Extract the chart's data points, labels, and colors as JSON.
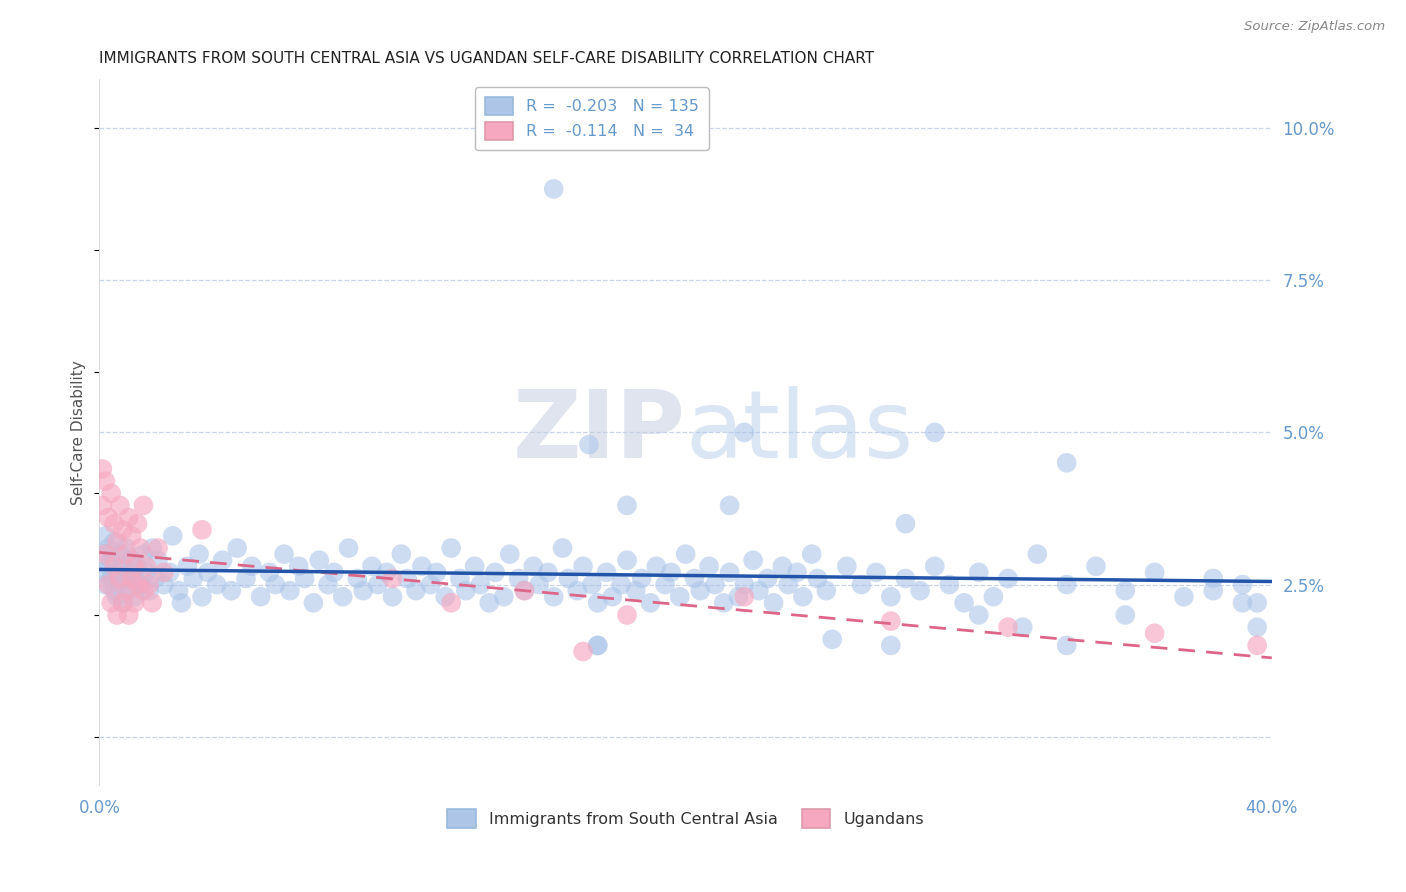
{
  "title": "IMMIGRANTS FROM SOUTH CENTRAL ASIA VS UGANDAN SELF-CARE DISABILITY CORRELATION CHART",
  "source": "Source: ZipAtlas.com",
  "ylabel": "Self-Care Disability",
  "legend_blue_label": "Immigrants from South Central Asia",
  "legend_pink_label": "Ugandans",
  "R_blue": -0.203,
  "N_blue": 135,
  "R_pink": -0.114,
  "N_pink": 34,
  "blue_color": "#adc6e8",
  "pink_color": "#f5a8c0",
  "blue_line_color": "#2255aa",
  "pink_line_color": "#dd6688",
  "watermark_zip": "ZIP",
  "watermark_atlas": "atlas",
  "background_color": "#ffffff",
  "grid_color": "#c8d4e8",
  "title_color": "#222222",
  "axis_label_color": "#6699cc",
  "xlim": [
    0.0,
    0.4
  ],
  "ylim": [
    -0.008,
    0.108
  ],
  "ytick_vals": [
    0.0,
    0.025,
    0.05,
    0.075,
    0.1
  ],
  "blue_scatter": [
    [
      0.001,
      0.03
    ],
    [
      0.001,
      0.027
    ],
    [
      0.002,
      0.033
    ],
    [
      0.002,
      0.025
    ],
    [
      0.003,
      0.028
    ],
    [
      0.003,
      0.031
    ],
    [
      0.004,
      0.026
    ],
    [
      0.004,
      0.029
    ],
    [
      0.005,
      0.032
    ],
    [
      0.005,
      0.024
    ],
    [
      0.006,
      0.027
    ],
    [
      0.006,
      0.023
    ],
    [
      0.007,
      0.03
    ],
    [
      0.007,
      0.025
    ],
    [
      0.008,
      0.028
    ],
    [
      0.008,
      0.022
    ],
    [
      0.009,
      0.026
    ],
    [
      0.009,
      0.031
    ],
    [
      0.01,
      0.024
    ],
    [
      0.01,
      0.027
    ],
    [
      0.011,
      0.029
    ],
    [
      0.012,
      0.023
    ],
    [
      0.012,
      0.026
    ],
    [
      0.013,
      0.028
    ],
    [
      0.014,
      0.025
    ],
    [
      0.015,
      0.03
    ],
    [
      0.016,
      0.027
    ],
    [
      0.017,
      0.024
    ],
    [
      0.018,
      0.031
    ],
    [
      0.019,
      0.026
    ],
    [
      0.02,
      0.029
    ],
    [
      0.022,
      0.025
    ],
    [
      0.024,
      0.027
    ],
    [
      0.025,
      0.033
    ],
    [
      0.027,
      0.024
    ],
    [
      0.028,
      0.022
    ],
    [
      0.03,
      0.028
    ],
    [
      0.032,
      0.026
    ],
    [
      0.034,
      0.03
    ],
    [
      0.035,
      0.023
    ],
    [
      0.037,
      0.027
    ],
    [
      0.04,
      0.025
    ],
    [
      0.042,
      0.029
    ],
    [
      0.045,
      0.024
    ],
    [
      0.047,
      0.031
    ],
    [
      0.05,
      0.026
    ],
    [
      0.052,
      0.028
    ],
    [
      0.055,
      0.023
    ],
    [
      0.058,
      0.027
    ],
    [
      0.06,
      0.025
    ],
    [
      0.063,
      0.03
    ],
    [
      0.065,
      0.024
    ],
    [
      0.068,
      0.028
    ],
    [
      0.07,
      0.026
    ],
    [
      0.073,
      0.022
    ],
    [
      0.075,
      0.029
    ],
    [
      0.078,
      0.025
    ],
    [
      0.08,
      0.027
    ],
    [
      0.083,
      0.023
    ],
    [
      0.085,
      0.031
    ],
    [
      0.088,
      0.026
    ],
    [
      0.09,
      0.024
    ],
    [
      0.093,
      0.028
    ],
    [
      0.095,
      0.025
    ],
    [
      0.098,
      0.027
    ],
    [
      0.1,
      0.023
    ],
    [
      0.103,
      0.03
    ],
    [
      0.105,
      0.026
    ],
    [
      0.108,
      0.024
    ],
    [
      0.11,
      0.028
    ],
    [
      0.113,
      0.025
    ],
    [
      0.115,
      0.027
    ],
    [
      0.118,
      0.023
    ],
    [
      0.12,
      0.031
    ],
    [
      0.123,
      0.026
    ],
    [
      0.125,
      0.024
    ],
    [
      0.128,
      0.028
    ],
    [
      0.13,
      0.025
    ],
    [
      0.133,
      0.022
    ],
    [
      0.135,
      0.027
    ],
    [
      0.138,
      0.023
    ],
    [
      0.14,
      0.03
    ],
    [
      0.143,
      0.026
    ],
    [
      0.145,
      0.024
    ],
    [
      0.148,
      0.028
    ],
    [
      0.15,
      0.025
    ],
    [
      0.153,
      0.027
    ],
    [
      0.155,
      0.023
    ],
    [
      0.158,
      0.031
    ],
    [
      0.16,
      0.026
    ],
    [
      0.163,
      0.024
    ],
    [
      0.165,
      0.028
    ],
    [
      0.168,
      0.025
    ],
    [
      0.17,
      0.022
    ],
    [
      0.173,
      0.027
    ],
    [
      0.175,
      0.023
    ],
    [
      0.178,
      0.025
    ],
    [
      0.18,
      0.029
    ],
    [
      0.183,
      0.024
    ],
    [
      0.185,
      0.026
    ],
    [
      0.188,
      0.022
    ],
    [
      0.19,
      0.028
    ],
    [
      0.193,
      0.025
    ],
    [
      0.195,
      0.027
    ],
    [
      0.198,
      0.023
    ],
    [
      0.2,
      0.03
    ],
    [
      0.203,
      0.026
    ],
    [
      0.205,
      0.024
    ],
    [
      0.208,
      0.028
    ],
    [
      0.21,
      0.025
    ],
    [
      0.213,
      0.022
    ],
    [
      0.215,
      0.027
    ],
    [
      0.218,
      0.023
    ],
    [
      0.22,
      0.025
    ],
    [
      0.223,
      0.029
    ],
    [
      0.225,
      0.024
    ],
    [
      0.228,
      0.026
    ],
    [
      0.23,
      0.022
    ],
    [
      0.233,
      0.028
    ],
    [
      0.235,
      0.025
    ],
    [
      0.238,
      0.027
    ],
    [
      0.24,
      0.023
    ],
    [
      0.243,
      0.03
    ],
    [
      0.245,
      0.026
    ],
    [
      0.248,
      0.024
    ],
    [
      0.255,
      0.028
    ],
    [
      0.26,
      0.025
    ],
    [
      0.265,
      0.027
    ],
    [
      0.27,
      0.023
    ],
    [
      0.275,
      0.026
    ],
    [
      0.28,
      0.024
    ],
    [
      0.285,
      0.028
    ],
    [
      0.29,
      0.025
    ],
    [
      0.295,
      0.022
    ],
    [
      0.3,
      0.027
    ],
    [
      0.305,
      0.023
    ],
    [
      0.31,
      0.026
    ],
    [
      0.32,
      0.03
    ],
    [
      0.33,
      0.025
    ],
    [
      0.34,
      0.028
    ],
    [
      0.35,
      0.024
    ],
    [
      0.36,
      0.027
    ],
    [
      0.37,
      0.023
    ],
    [
      0.38,
      0.026
    ],
    [
      0.39,
      0.022
    ],
    [
      0.395,
      0.018
    ],
    [
      0.17,
      0.015
    ],
    [
      0.25,
      0.016
    ],
    [
      0.27,
      0.015
    ],
    [
      0.33,
      0.015
    ],
    [
      0.38,
      0.024
    ],
    [
      0.39,
      0.025
    ],
    [
      0.395,
      0.022
    ],
    [
      0.18,
      0.038
    ],
    [
      0.215,
      0.038
    ],
    [
      0.275,
      0.035
    ],
    [
      0.22,
      0.05
    ],
    [
      0.285,
      0.05
    ],
    [
      0.167,
      0.048
    ],
    [
      0.33,
      0.045
    ],
    [
      0.3,
      0.02
    ],
    [
      0.315,
      0.018
    ],
    [
      0.35,
      0.02
    ],
    [
      0.17,
      0.015
    ]
  ],
  "blue_outliers": [
    [
      0.155,
      0.09
    ]
  ],
  "pink_scatter": [
    [
      0.001,
      0.044
    ],
    [
      0.001,
      0.038
    ],
    [
      0.002,
      0.042
    ],
    [
      0.002,
      0.03
    ],
    [
      0.003,
      0.036
    ],
    [
      0.003,
      0.025
    ],
    [
      0.004,
      0.04
    ],
    [
      0.004,
      0.022
    ],
    [
      0.005,
      0.035
    ],
    [
      0.005,
      0.028
    ],
    [
      0.006,
      0.032
    ],
    [
      0.006,
      0.02
    ],
    [
      0.007,
      0.038
    ],
    [
      0.007,
      0.026
    ],
    [
      0.008,
      0.034
    ],
    [
      0.008,
      0.022
    ],
    [
      0.009,
      0.03
    ],
    [
      0.009,
      0.024
    ],
    [
      0.01,
      0.036
    ],
    [
      0.01,
      0.02
    ],
    [
      0.011,
      0.033
    ],
    [
      0.011,
      0.026
    ],
    [
      0.012,
      0.028
    ],
    [
      0.012,
      0.022
    ],
    [
      0.013,
      0.035
    ],
    [
      0.013,
      0.025
    ],
    [
      0.014,
      0.031
    ],
    [
      0.015,
      0.038
    ],
    [
      0.015,
      0.024
    ],
    [
      0.016,
      0.028
    ],
    [
      0.017,
      0.025
    ],
    [
      0.018,
      0.022
    ],
    [
      0.02,
      0.031
    ],
    [
      0.022,
      0.027
    ],
    [
      0.035,
      0.034
    ],
    [
      0.1,
      0.026
    ],
    [
      0.12,
      0.022
    ],
    [
      0.145,
      0.024
    ],
    [
      0.18,
      0.02
    ],
    [
      0.22,
      0.023
    ],
    [
      0.27,
      0.019
    ],
    [
      0.31,
      0.018
    ],
    [
      0.36,
      0.017
    ],
    [
      0.395,
      0.015
    ]
  ],
  "pink_outliers": [
    [
      0.165,
      0.014
    ]
  ]
}
